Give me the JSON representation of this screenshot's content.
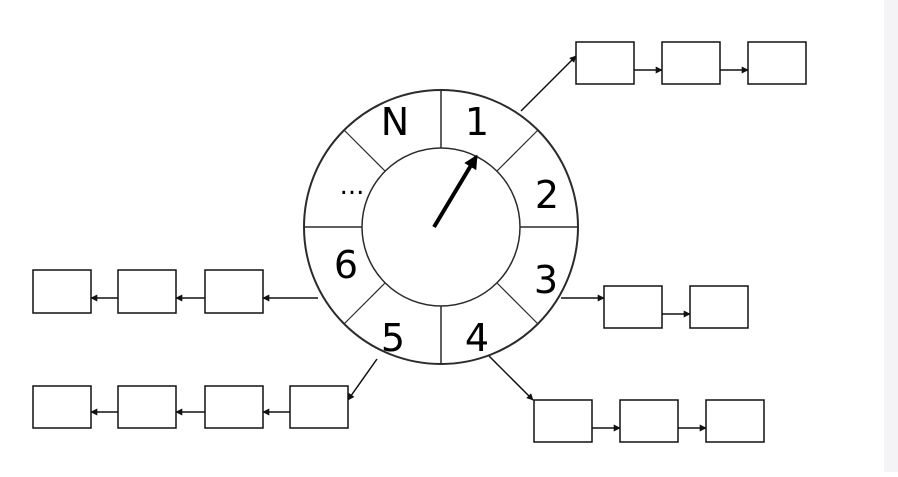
{
  "wheel": {
    "slots": [
      {
        "label": "1"
      },
      {
        "label": "2"
      },
      {
        "label": "3"
      },
      {
        "label": "4"
      },
      {
        "label": "5"
      },
      {
        "label": "6"
      },
      {
        "label": "..."
      },
      {
        "label": "N"
      }
    ]
  },
  "bucket_lists": [
    {
      "slot": "1",
      "node_count": 3
    },
    {
      "slot": "3",
      "node_count": 2
    },
    {
      "slot": "4",
      "node_count": 3
    },
    {
      "slot": "5",
      "node_count": 4
    },
    {
      "slot": "6",
      "node_count": 3
    }
  ],
  "colors": {
    "stroke": "#2b2b2b",
    "background": "#ffffff"
  }
}
